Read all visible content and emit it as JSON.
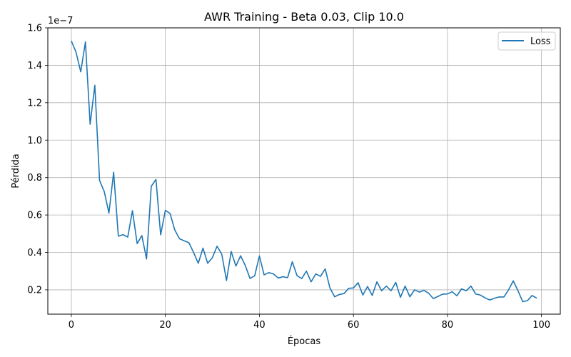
{
  "chart_data": {
    "type": "line",
    "title": "AWR Training - Beta 0.03, Clip 10.0",
    "xlabel": "Épocas",
    "ylabel": "Pérdida",
    "y_scale_label": "1e−7",
    "xlim": [
      -5,
      104
    ],
    "ylim": [
      0.07,
      1.6
    ],
    "x_ticks": [
      0,
      20,
      40,
      60,
      80,
      100
    ],
    "x_tick_labels": [
      "0",
      "20",
      "40",
      "60",
      "80",
      "100"
    ],
    "y_ticks": [
      0.2,
      0.4,
      0.6,
      0.8,
      1.0,
      1.2,
      1.4,
      1.6
    ],
    "y_tick_labels": [
      "0.2",
      "0.4",
      "0.6",
      "0.8",
      "1.0",
      "1.2",
      "1.4",
      "1.6"
    ],
    "grid": true,
    "legend_position": "top-right",
    "series": [
      {
        "name": "Loss",
        "color": "#1f77b4",
        "x": [
          0,
          1,
          2,
          3,
          4,
          5,
          6,
          7,
          8,
          9,
          10,
          11,
          12,
          13,
          14,
          15,
          16,
          17,
          18,
          19,
          20,
          21,
          22,
          23,
          24,
          25,
          26,
          27,
          28,
          29,
          30,
          31,
          32,
          33,
          34,
          35,
          36,
          37,
          38,
          39,
          40,
          41,
          42,
          43,
          44,
          45,
          46,
          47,
          48,
          49,
          50,
          51,
          52,
          53,
          54,
          55,
          56,
          57,
          58,
          59,
          60,
          61,
          62,
          63,
          64,
          65,
          66,
          67,
          68,
          69,
          70,
          71,
          72,
          73,
          74,
          75,
          76,
          77,
          78,
          79,
          80,
          81,
          82,
          83,
          84,
          85,
          86,
          87,
          88,
          89,
          90,
          91,
          92,
          93,
          94,
          95,
          96,
          97,
          98,
          99
        ],
        "values": [
          1.53,
          1.47,
          1.365,
          1.525,
          1.085,
          1.293,
          0.785,
          0.725,
          0.61,
          0.828,
          0.487,
          0.495,
          0.482,
          0.623,
          0.447,
          0.49,
          0.365,
          0.753,
          0.79,
          0.494,
          0.625,
          0.608,
          0.52,
          0.473,
          0.462,
          0.452,
          0.4,
          0.342,
          0.423,
          0.342,
          0.372,
          0.433,
          0.39,
          0.25,
          0.405,
          0.327,
          0.382,
          0.33,
          0.261,
          0.275,
          0.381,
          0.28,
          0.292,
          0.285,
          0.263,
          0.27,
          0.265,
          0.35,
          0.276,
          0.26,
          0.3,
          0.243,
          0.285,
          0.272,
          0.312,
          0.21,
          0.163,
          0.175,
          0.18,
          0.208,
          0.21,
          0.238,
          0.172,
          0.218,
          0.17,
          0.243,
          0.195,
          0.22,
          0.195,
          0.24,
          0.16,
          0.22,
          0.163,
          0.2,
          0.188,
          0.197,
          0.182,
          0.153,
          0.165,
          0.177,
          0.178,
          0.19,
          0.168,
          0.205,
          0.195,
          0.22,
          0.178,
          0.172,
          0.157,
          0.146,
          0.155,
          0.162,
          0.162,
          0.2,
          0.248,
          0.195,
          0.137,
          0.142,
          0.17,
          0.155
        ]
      }
    ]
  }
}
